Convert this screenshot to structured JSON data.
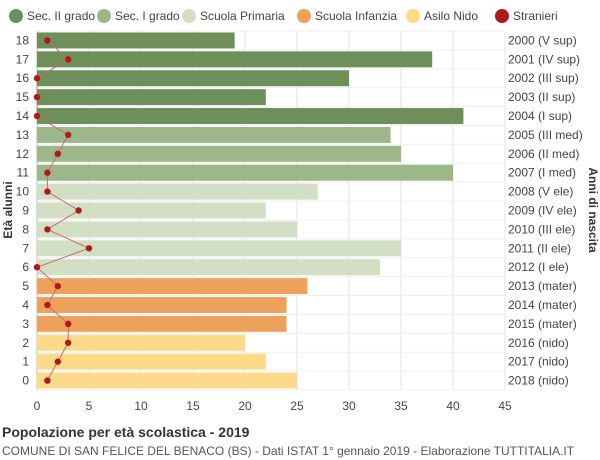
{
  "chart_data": {
    "type": "bar",
    "orientation": "horizontal",
    "title": "Popolazione per età scolastica - 2019",
    "subtitle": "COMUNE DI SAN FELICE DEL BENACO (BS) - Dati ISTAT 1° gennaio 2019 - Elaborazione TUTTITALIA.IT",
    "ylabel": "Età alunni",
    "ylabel_right": "Anni di nascita",
    "xlim": [
      0,
      45
    ],
    "x_ticks": [
      "0",
      "5",
      "10",
      "15",
      "20",
      "25",
      "30",
      "35",
      "40",
      "45"
    ],
    "grid": true,
    "legend_position": "top",
    "legend": [
      {
        "name": "Sec. II grado",
        "color": "#6e8f5a",
        "marker": "circle"
      },
      {
        "name": "Sec. I grado",
        "color": "#9cb88a",
        "marker": "circle"
      },
      {
        "name": "Scuola Primaria",
        "color": "#d3dfc4",
        "marker": "circle"
      },
      {
        "name": "Scuola Infanzia",
        "color": "#eda15a",
        "marker": "circle"
      },
      {
        "name": "Asilo Nido",
        "color": "#fdd98a",
        "marker": "circle"
      },
      {
        "name": "Stranieri",
        "color": "#b5161b",
        "marker": "circle"
      }
    ],
    "ages": [
      "18",
      "17",
      "16",
      "15",
      "14",
      "13",
      "12",
      "11",
      "10",
      "9",
      "8",
      "7",
      "6",
      "5",
      "4",
      "3",
      "2",
      "1",
      "0"
    ],
    "birth_years": [
      "2000 (V sup)",
      "2001 (IV sup)",
      "2002 (III sup)",
      "2003 (II sup)",
      "2004 (I sup)",
      "2005 (III med)",
      "2006 (II med)",
      "2007 (I med)",
      "2008 (V ele)",
      "2009 (IV ele)",
      "2010 (III ele)",
      "2011 (II ele)",
      "2012 (I ele)",
      "2013 (mater)",
      "2014 (mater)",
      "2015 (mater)",
      "2016 (nido)",
      "2017 (nido)",
      "2018 (nido)"
    ],
    "values": [
      19,
      38,
      30,
      22,
      41,
      34,
      35,
      40,
      27,
      22,
      25,
      35,
      33,
      26,
      24,
      24,
      20,
      22,
      25
    ],
    "categories": [
      "Sec. II grado",
      "Sec. II grado",
      "Sec. II grado",
      "Sec. II grado",
      "Sec. II grado",
      "Sec. I grado",
      "Sec. I grado",
      "Sec. I grado",
      "Scuola Primaria",
      "Scuola Primaria",
      "Scuola Primaria",
      "Scuola Primaria",
      "Scuola Primaria",
      "Scuola Infanzia",
      "Scuola Infanzia",
      "Scuola Infanzia",
      "Asilo Nido",
      "Asilo Nido",
      "Asilo Nido"
    ],
    "stranieri": [
      1,
      3,
      0,
      0,
      0,
      3,
      2,
      1,
      1,
      4,
      1,
      5,
      0,
      2,
      1,
      3,
      3,
      2,
      1
    ]
  }
}
